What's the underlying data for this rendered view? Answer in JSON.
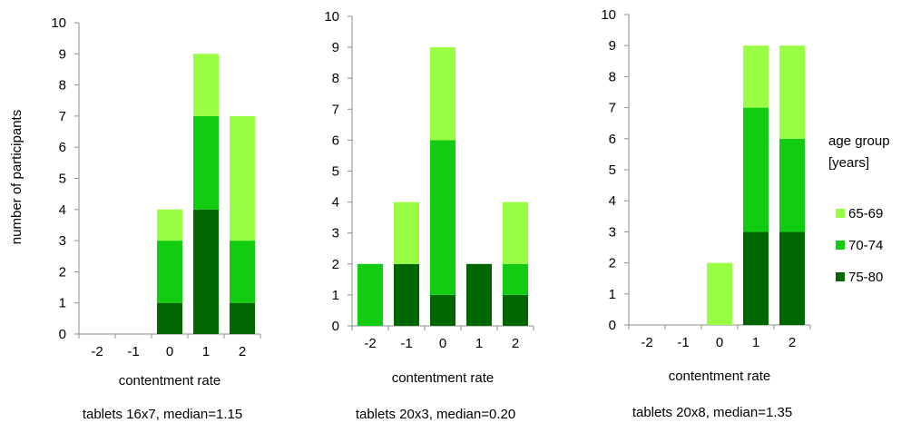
{
  "y_axis_label": "number of participants",
  "legend": {
    "title_line1": "age group",
    "title_line2": "[years]",
    "items": [
      {
        "label": "65-69",
        "color": "#99ff44"
      },
      {
        "label": "70-74",
        "color": "#11cc11"
      },
      {
        "label": "75-80",
        "color": "#006600"
      }
    ]
  },
  "chart_data": [
    {
      "type": "bar",
      "stacked": true,
      "title": "tablets 16x7, median=1.15",
      "xlabel": "contentment rate",
      "ylabel": "number of participants",
      "categories": [
        "-2",
        "-1",
        "0",
        "1",
        "2"
      ],
      "ylim": [
        0,
        10
      ],
      "yticks": [
        "0",
        "1",
        "2",
        "3",
        "4",
        "5",
        "6",
        "7",
        "8",
        "9",
        "10"
      ],
      "series": [
        {
          "name": "75-80",
          "values": [
            0,
            0,
            1,
            4,
            1
          ]
        },
        {
          "name": "70-74",
          "values": [
            0,
            0,
            2,
            3,
            2
          ]
        },
        {
          "name": "65-69",
          "values": [
            0,
            0,
            1,
            2,
            4
          ]
        }
      ]
    },
    {
      "type": "bar",
      "stacked": true,
      "title": "tablets 20x3, median=0.20",
      "xlabel": "contentment rate",
      "ylabel": "",
      "categories": [
        "-2",
        "-1",
        "0",
        "1",
        "2"
      ],
      "ylim": [
        0,
        10
      ],
      "yticks": [
        "0",
        "1",
        "2",
        "3",
        "4",
        "5",
        "6",
        "7",
        "8",
        "9",
        "10"
      ],
      "series": [
        {
          "name": "75-80",
          "values": [
            0,
            2,
            1,
            2,
            1
          ]
        },
        {
          "name": "70-74",
          "values": [
            2,
            0,
            5,
            0,
            1
          ]
        },
        {
          "name": "65-69",
          "values": [
            0,
            2,
            3,
            0,
            2
          ]
        }
      ]
    },
    {
      "type": "bar",
      "stacked": true,
      "title": "tablets 20x8, median=1.35",
      "xlabel": "contentment rate",
      "ylabel": "",
      "categories": [
        "-2",
        "-1",
        "0",
        "1",
        "2"
      ],
      "ylim": [
        0,
        10
      ],
      "yticks": [
        "0",
        "1",
        "2",
        "3",
        "4",
        "5",
        "6",
        "7",
        "8",
        "9",
        "10"
      ],
      "series": [
        {
          "name": "75-80",
          "values": [
            0,
            0,
            0,
            3,
            3
          ]
        },
        {
          "name": "70-74",
          "values": [
            0,
            0,
            0,
            4,
            3
          ]
        },
        {
          "name": "65-69",
          "values": [
            0,
            0,
            2,
            2,
            3
          ]
        }
      ]
    }
  ]
}
